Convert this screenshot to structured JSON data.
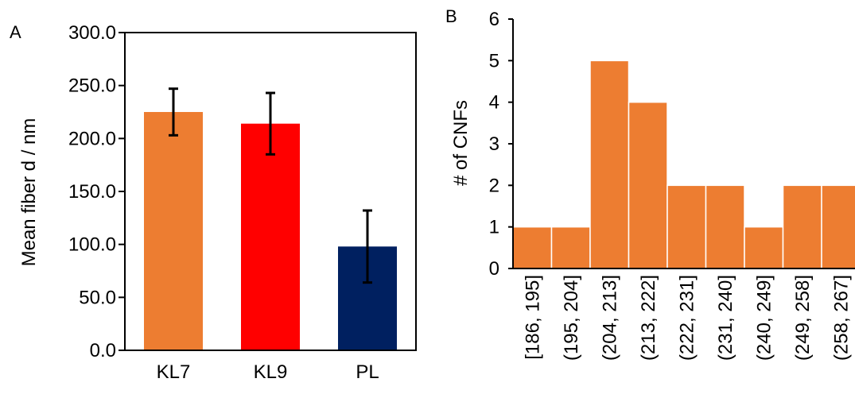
{
  "chart_data": [
    {
      "panel": "A",
      "type": "bar",
      "categories": [
        "KL7",
        "KL9",
        "PL"
      ],
      "values": [
        225.0,
        214.0,
        98.0
      ],
      "errors": [
        22.0,
        29.0,
        34.0
      ],
      "bar_colors": [
        "#ED7D31",
        "#FF0000",
        "#002060"
      ],
      "ylabel": "Mean fiber d / nm",
      "ylim": [
        0,
        300
      ],
      "yticks": [
        "0.0",
        "50.0",
        "100.0",
        "150.0",
        "200.0",
        "250.0",
        "300.0"
      ],
      "ytick_values": [
        0,
        50,
        100,
        150,
        200,
        250,
        300
      ],
      "grid": false
    },
    {
      "panel": "B",
      "type": "bar",
      "categories": [
        "[186, 195]",
        "(195, 204]",
        "(204, 213]",
        "(213, 222]",
        "(222, 231]",
        "(231, 240]",
        "(240, 249]",
        "(249, 258]",
        "(258, 267]"
      ],
      "values": [
        1,
        1,
        5,
        4,
        2,
        2,
        1,
        2,
        2
      ],
      "bar_color": "#ED7D31",
      "ylabel": "# of CNFs",
      "ylim": [
        0,
        6
      ],
      "yticks": [
        "0",
        "1",
        "2",
        "3",
        "4",
        "5",
        "6"
      ],
      "ytick_values": [
        0,
        1,
        2,
        3,
        4,
        5,
        6
      ],
      "grid": false
    }
  ]
}
